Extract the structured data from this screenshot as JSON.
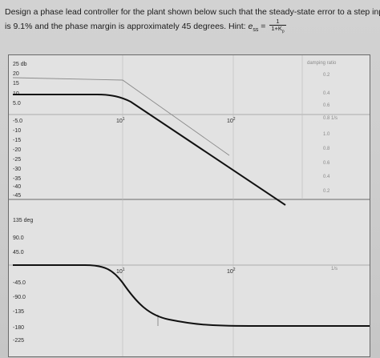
{
  "question": {
    "line1": "Design a phase lead controller for the plant shown below such that the steady-state error to a step input",
    "line2_prefix": "is 9.1% and the phase margin is approximately 45 degrees.  Hint: ",
    "hint_lhs": "e",
    "hint_sub": "ss",
    "hint_eq": " = ",
    "hint_num": "1",
    "hint_den": "1+K",
    "hint_den_sub": "p"
  },
  "magnitude_plot": {
    "unit_label": "25 db",
    "y_ticks": [
      "20",
      "15",
      "10",
      "5.0",
      "-5.0",
      "-10",
      "-15",
      "-20",
      "-25",
      "-30",
      "-35",
      "-40",
      "-45"
    ],
    "freq_labels": [
      "10",
      "10",
      "1/s"
    ],
    "freq_exponents": [
      "1",
      "2",
      ""
    ],
    "damping_title": "damping ratio",
    "damping_ticks": [
      "0.2",
      "0.4",
      "0.6",
      "0.8",
      "1.0",
      "0.8",
      "0.6",
      "0.4",
      "0.2"
    ]
  },
  "phase_plot": {
    "unit_label": "135 deg",
    "y_ticks": [
      "90.0",
      "45.0",
      "-45.0",
      "-90.0",
      "-135",
      "-180",
      "-225"
    ],
    "freq_labels": [
      "10",
      "10",
      "1/s"
    ],
    "freq_exponents": [
      "1",
      "2",
      ""
    ]
  },
  "colors": {
    "curve": "#111111",
    "asymptote": "#8a8a8a",
    "grid": "#9a9a9a",
    "frame": "#6a6a6a"
  }
}
